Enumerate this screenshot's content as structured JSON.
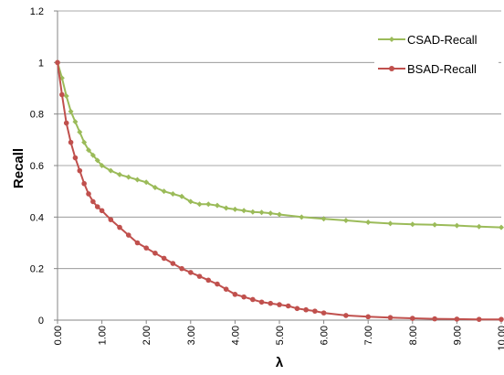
{
  "chart_data": {
    "type": "line",
    "xlabel": "λ",
    "ylabel": "Recall",
    "xlim": [
      0,
      10
    ],
    "ylim": [
      0,
      1.2
    ],
    "x_ticks": [
      0,
      1,
      2,
      3,
      4,
      5,
      6,
      7,
      8,
      9,
      10
    ],
    "x_tick_labels": [
      "0.00",
      "1.00",
      "2.00",
      "3.00",
      "4.00",
      "5.00",
      "6.00",
      "7.00",
      "8.00",
      "9.00",
      "10.00"
    ],
    "y_ticks": [
      0,
      0.2,
      0.4,
      0.6,
      0.8,
      1,
      1.2
    ],
    "y_tick_labels": [
      "0",
      "0.2",
      "0.4",
      "0.6",
      "0.8",
      "1",
      "1.2"
    ],
    "grid": "horizontal",
    "legend_position": "right",
    "series": [
      {
        "name": "CSAD-Recall",
        "color": "#9bbb59",
        "marker": "diamond",
        "x": [
          0,
          0.1,
          0.2,
          0.3,
          0.4,
          0.5,
          0.6,
          0.7,
          0.8,
          0.9,
          1.0,
          1.2,
          1.4,
          1.6,
          1.8,
          2.0,
          2.2,
          2.4,
          2.6,
          2.8,
          3.0,
          3.2,
          3.4,
          3.6,
          3.8,
          4.0,
          4.2,
          4.4,
          4.6,
          4.8,
          5.0,
          5.5,
          6.0,
          6.5,
          7.0,
          7.5,
          8.0,
          8.5,
          9.0,
          9.5,
          10.0
        ],
        "values": [
          1.0,
          0.94,
          0.87,
          0.81,
          0.77,
          0.73,
          0.69,
          0.66,
          0.64,
          0.62,
          0.6,
          0.58,
          0.565,
          0.555,
          0.545,
          0.535,
          0.515,
          0.5,
          0.49,
          0.48,
          0.46,
          0.45,
          0.45,
          0.445,
          0.435,
          0.43,
          0.425,
          0.42,
          0.418,
          0.415,
          0.41,
          0.4,
          0.393,
          0.387,
          0.38,
          0.375,
          0.372,
          0.37,
          0.367,
          0.363,
          0.36
        ]
      },
      {
        "name": "BSAD-Recall",
        "color": "#c0504d",
        "marker": "circle",
        "x": [
          0,
          0.1,
          0.2,
          0.3,
          0.4,
          0.5,
          0.6,
          0.7,
          0.8,
          0.9,
          1.0,
          1.2,
          1.4,
          1.6,
          1.8,
          2.0,
          2.2,
          2.4,
          2.6,
          2.8,
          3.0,
          3.2,
          3.4,
          3.6,
          3.8,
          4.0,
          4.2,
          4.4,
          4.6,
          4.8,
          5.0,
          5.2,
          5.4,
          5.6,
          5.8,
          6.0,
          6.5,
          7.0,
          7.5,
          8.0,
          8.5,
          9.0,
          9.5,
          10.0
        ],
        "values": [
          1.0,
          0.875,
          0.765,
          0.69,
          0.63,
          0.58,
          0.53,
          0.49,
          0.46,
          0.44,
          0.425,
          0.39,
          0.36,
          0.33,
          0.3,
          0.28,
          0.26,
          0.24,
          0.22,
          0.2,
          0.185,
          0.17,
          0.155,
          0.14,
          0.12,
          0.1,
          0.09,
          0.08,
          0.07,
          0.065,
          0.06,
          0.055,
          0.045,
          0.04,
          0.035,
          0.028,
          0.018,
          0.013,
          0.01,
          0.007,
          0.005,
          0.004,
          0.003,
          0.003
        ]
      }
    ]
  }
}
